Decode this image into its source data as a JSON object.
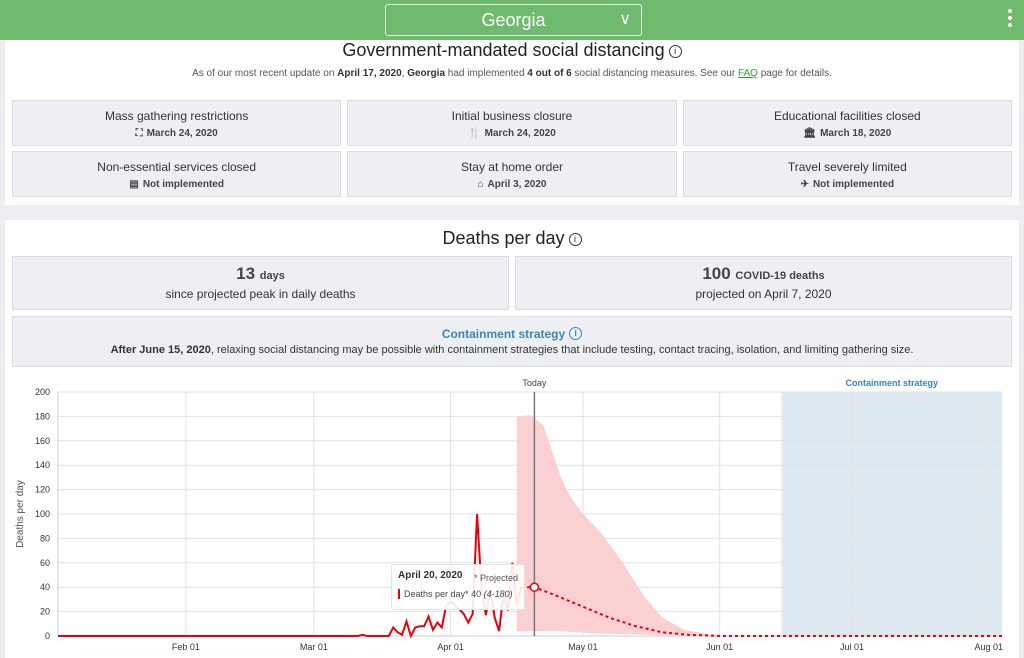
{
  "header": {
    "location": "Georgia",
    "menu_icon": "kebab-icon"
  },
  "distancing": {
    "title": "Government-mandated social distancing",
    "intro_pre": "As of our most recent update on ",
    "intro_date": "April 17, 2020",
    "intro_sep": ", ",
    "intro_loc": "Georgia",
    "intro_mid": " had implemented ",
    "intro_count": "4 out of 6",
    "intro_post": " social distancing measures. See our ",
    "faq": "FAQ",
    "intro_end": " page for details.",
    "measures": [
      {
        "title": "Mass gathering restrictions",
        "icon": "people-icon",
        "glyph": "⛶",
        "status": "March 24, 2020"
      },
      {
        "title": "Initial business closure",
        "icon": "fork-knife-icon",
        "glyph": "🍴",
        "status": "March 24, 2020"
      },
      {
        "title": "Educational facilities closed",
        "icon": "school-icon",
        "glyph": "🏛",
        "status": "March 18, 2020"
      },
      {
        "title": "Non-essential services closed",
        "icon": "store-icon",
        "glyph": "▤",
        "status": "Not implemented"
      },
      {
        "title": "Stay at home order",
        "icon": "home-icon",
        "glyph": "⌂",
        "status": "April 3, 2020"
      },
      {
        "title": "Travel severely limited",
        "icon": "plane-icon",
        "glyph": "✈",
        "status": "Not implemented"
      }
    ]
  },
  "deaths": {
    "title": "Deaths per day",
    "peak_days": "13",
    "peak_days_unit": "days",
    "peak_label": "since projected peak in daily deaths",
    "peak_deaths": "100",
    "peak_deaths_unit": "COVID-19 deaths",
    "peak_date_label": "projected on April 7, 2020",
    "containment_title": "Containment strategy",
    "containment_date": "After June 15, 2020",
    "containment_text": ", relaxing social distancing may be possible with containment strategies that include testing, contact tracing, isolation, and limiting gathering size."
  },
  "tooltip": {
    "date": "April 20, 2020",
    "note": "* Projected",
    "series": "Deaths per day*",
    "value": "40",
    "range": "(4-180)"
  },
  "chart_data": {
    "type": "line",
    "ylabel": "Deaths per day",
    "ylim": [
      0,
      200
    ],
    "yticks": [
      0,
      20,
      40,
      60,
      80,
      100,
      120,
      140,
      160,
      180,
      200
    ],
    "xlim": [
      "2020-01-03",
      "2020-08-04"
    ],
    "xticks": [
      {
        "date": "2020-02-01",
        "label": "Feb 01"
      },
      {
        "date": "2020-03-01",
        "label": "Mar 01"
      },
      {
        "date": "2020-04-01",
        "label": "Apr 01"
      },
      {
        "date": "2020-05-01",
        "label": "May 01"
      },
      {
        "date": "2020-06-01",
        "label": "Jun 01"
      },
      {
        "date": "2020-07-01",
        "label": "Jul 01"
      },
      {
        "date": "2020-08-01",
        "label": "Aug 01"
      }
    ],
    "grid": true,
    "today": {
      "date": "2020-04-20",
      "label": "Today"
    },
    "containment": {
      "start": "2020-06-15",
      "end": "2020-08-04",
      "label": "Containment strategy"
    },
    "colors": {
      "line": "#e8000b",
      "band": "#fbd0d2",
      "containment": "#dfe9f1",
      "label": "#3a86b6"
    },
    "observed": [
      [
        "2020-01-03",
        0
      ],
      [
        "2020-03-11",
        0
      ],
      [
        "2020-03-12",
        1
      ],
      [
        "2020-03-13",
        0
      ],
      [
        "2020-03-18",
        0
      ],
      [
        "2020-03-19",
        7
      ],
      [
        "2020-03-20",
        3
      ],
      [
        "2020-03-21",
        1
      ],
      [
        "2020-03-22",
        12
      ],
      [
        "2020-03-23",
        0
      ],
      [
        "2020-03-24",
        7
      ],
      [
        "2020-03-25",
        8
      ],
      [
        "2020-03-26",
        8
      ],
      [
        "2020-03-27",
        16
      ],
      [
        "2020-03-28",
        5
      ],
      [
        "2020-03-29",
        11
      ],
      [
        "2020-03-30",
        7
      ],
      [
        "2020-03-31",
        25
      ],
      [
        "2020-04-01",
        28
      ],
      [
        "2020-04-02",
        25
      ],
      [
        "2020-04-03",
        22
      ],
      [
        "2020-04-04",
        18
      ],
      [
        "2020-04-05",
        11
      ],
      [
        "2020-04-06",
        18
      ],
      [
        "2020-04-07",
        100
      ],
      [
        "2020-04-08",
        40
      ],
      [
        "2020-04-09",
        17
      ],
      [
        "2020-04-10",
        38
      ],
      [
        "2020-04-11",
        15
      ],
      [
        "2020-04-12",
        4
      ],
      [
        "2020-04-13",
        35
      ],
      [
        "2020-04-14",
        21
      ],
      [
        "2020-04-15",
        60
      ],
      [
        "2020-04-16",
        25
      ],
      [
        "2020-04-17",
        40
      ]
    ],
    "projected": [
      [
        "2020-04-17",
        40
      ],
      [
        "2020-04-20",
        40
      ],
      [
        "2020-04-25",
        33
      ],
      [
        "2020-05-01",
        24
      ],
      [
        "2020-05-07",
        15
      ],
      [
        "2020-05-13",
        8
      ],
      [
        "2020-05-19",
        3
      ],
      [
        "2020-05-25",
        1
      ],
      [
        "2020-06-01",
        0
      ],
      [
        "2020-08-04",
        0
      ]
    ],
    "band_upper": [
      [
        "2020-04-16",
        180
      ],
      [
        "2020-04-19",
        181
      ],
      [
        "2020-04-22",
        173
      ],
      [
        "2020-04-26",
        130
      ],
      [
        "2020-04-28",
        115
      ],
      [
        "2020-05-01",
        100
      ],
      [
        "2020-05-05",
        85
      ],
      [
        "2020-05-10",
        60
      ],
      [
        "2020-05-15",
        32
      ],
      [
        "2020-05-19",
        15
      ],
      [
        "2020-05-24",
        5
      ],
      [
        "2020-05-30",
        1
      ],
      [
        "2020-06-03",
        0
      ]
    ],
    "band_lower": [
      [
        "2020-04-16",
        4
      ],
      [
        "2020-04-25",
        4
      ],
      [
        "2020-05-05",
        2
      ],
      [
        "2020-05-15",
        1
      ],
      [
        "2020-06-03",
        0
      ]
    ]
  }
}
